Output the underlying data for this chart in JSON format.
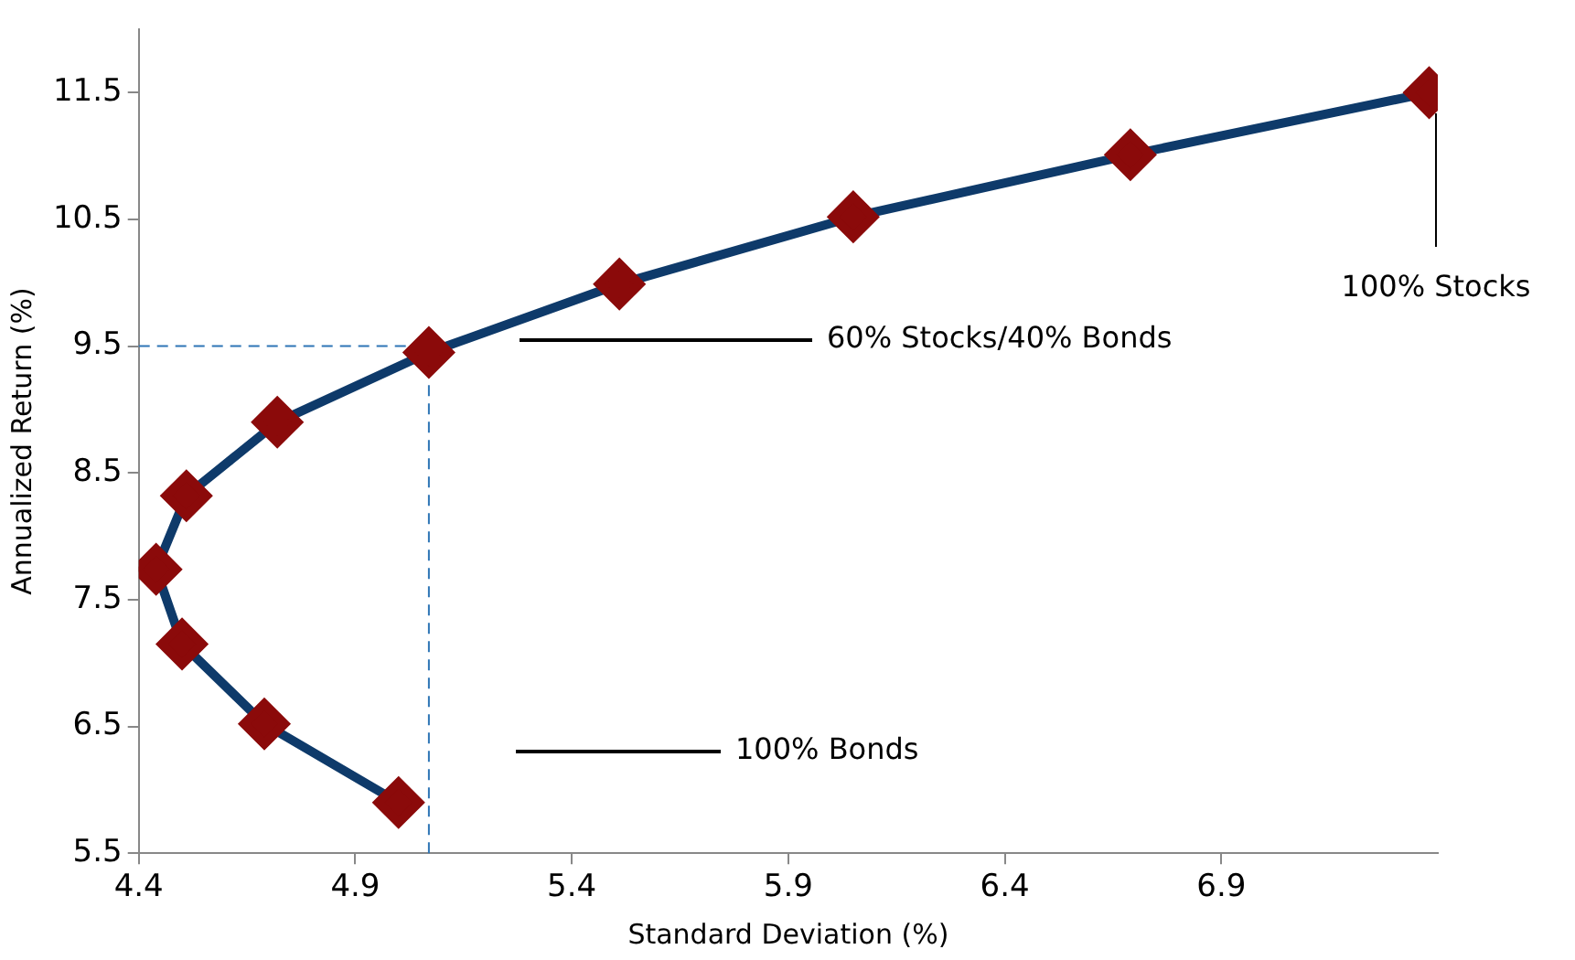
{
  "chart_data": {
    "type": "line",
    "xlabel": "Standard Deviation (%)",
    "ylabel": "Annualized Return (%)",
    "series": [
      {
        "color": "#0e3a6a",
        "colors": [
          "#8b0a0a",
          "#8b0a0a",
          "#8b0a0a",
          "#8b0a0a",
          "#8b0a0a",
          "#8b0a0a",
          "#8b0a0a",
          "#8b0a0a",
          "#8b0a0a",
          "#8b0a0a",
          "#8b0a0a"
        ],
        "x": [
          5.0,
          4.69,
          4.5,
          4.44,
          4.51,
          4.72,
          5.07,
          5.51,
          6.05,
          6.69,
          7.38
        ],
        "values": [
          5.9,
          6.52,
          7.15,
          7.74,
          8.32,
          8.9,
          9.45,
          9.99,
          10.52,
          11.01,
          11.5
        ]
      }
    ],
    "xlim": [
      4.4,
      7.4
    ],
    "xticks": [
      4.4,
      4.9,
      5.4,
      5.9,
      6.4,
      6.9
    ],
    "ylim": [
      5.5,
      12
    ],
    "yticks": [
      5.5,
      6.5,
      7.5,
      8.5,
      9.5,
      10.5,
      11.5
    ],
    "marker": "diamond",
    "line_style": "solid",
    "grid": false,
    "legend": false,
    "ref_lines": [
      {
        "axis": "x",
        "value": 5.07,
        "color": "#2e75b6",
        "line_style": "dashed"
      },
      {
        "axis": "y",
        "value": 9.5,
        "color": "#2e75b6",
        "line_style": "dashed"
      }
    ],
    "annotations": [
      "60% Stocks/40% Bonds",
      "100% Bonds",
      "100% Stocks"
    ]
  }
}
